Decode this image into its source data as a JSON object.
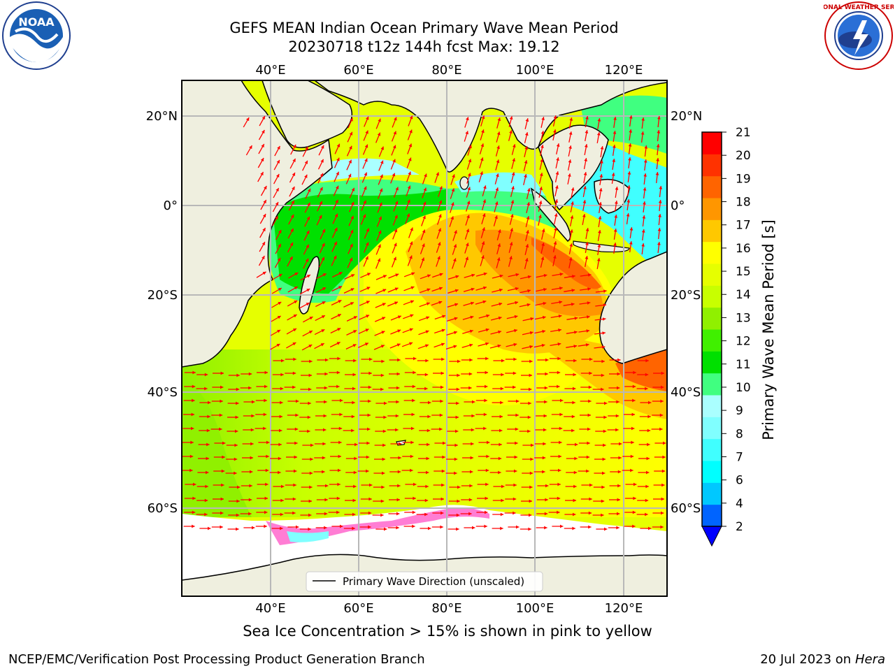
{
  "header": {
    "title_line1": "GEFS MEAN Indian Ocean Primary Wave Mean Period",
    "title_line2": "20230718 t12z 144h fcst   Max: 19.12"
  },
  "logos": {
    "noaa_text": "NOAA",
    "nws_text": "NATIONAL WEATHER SERVICE"
  },
  "map": {
    "lon_labels": [
      "40°E",
      "60°E",
      "80°E",
      "100°E",
      "120°E"
    ],
    "lat_labels": [
      "20°N",
      "0°",
      "20°S",
      "40°S",
      "60°S"
    ],
    "legend_label": "Primary Wave Direction (unscaled)",
    "arrow_color": "#ff0000",
    "land_color": "#efefdf"
  },
  "colorbar": {
    "title": "Primary Wave Mean Period [s]",
    "ticks": [
      "2",
      "4",
      "6",
      "7",
      "8",
      "9",
      "10",
      "11",
      "12",
      "13",
      "14",
      "15",
      "16",
      "17",
      "18",
      "19",
      "20",
      "21"
    ],
    "colors": [
      "#0064ff",
      "#00c8ff",
      "#00ffff",
      "#40ffff",
      "#80ffff",
      "#aaffff",
      "#40ff80",
      "#00e000",
      "#40f000",
      "#90f000",
      "#c8ff00",
      "#e6ff00",
      "#ffff00",
      "#ffc800",
      "#ff9600",
      "#ff6400",
      "#ff3200",
      "#ff0000"
    ]
  },
  "footer": {
    "sea_ice_note": "Sea Ice Concentration > 15% is shown in pink to yellow",
    "producer": "NCEP/EMC/Verification Post Processing Product Generation Branch",
    "date_prefix": "20 Jul 2023 on ",
    "machine": "Hera"
  }
}
